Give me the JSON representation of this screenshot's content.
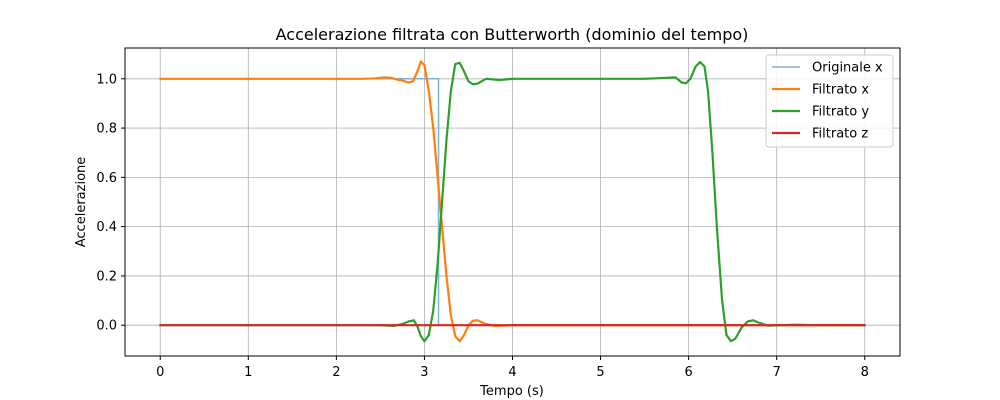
{
  "chart_data": {
    "type": "line",
    "title": "Accelerazione filtrata con Butterworth (dominio del tempo)",
    "xlabel": "Tempo (s)",
    "ylabel": "Accelerazione",
    "xlim": [
      -0.4,
      8.4
    ],
    "ylim": [
      -0.125,
      1.125
    ],
    "xticks": [
      0,
      1,
      2,
      3,
      4,
      5,
      6,
      7,
      8
    ],
    "yticks": [
      0.0,
      0.2,
      0.4,
      0.6,
      0.8,
      1.0
    ],
    "xtick_labels": [
      "0",
      "1",
      "2",
      "3",
      "4",
      "5",
      "6",
      "7",
      "8"
    ],
    "ytick_labels": [
      "0.0",
      "0.2",
      "0.4",
      "0.6",
      "0.8",
      "1.0"
    ],
    "grid": true,
    "legend_position": "top-right",
    "series": [
      {
        "name": "Originale x",
        "color": "#7fb2d6",
        "width": 1.5,
        "points": [
          [
            0,
            1.0
          ],
          [
            3.16,
            1.0
          ],
          [
            3.16,
            0.0
          ],
          [
            8,
            0.0
          ]
        ]
      },
      {
        "name": "Filtrato x",
        "color": "#ff7f0e",
        "width": 2.2,
        "points": [
          [
            0,
            1.0
          ],
          [
            2.3,
            1.0
          ],
          [
            2.45,
            1.002
          ],
          [
            2.55,
            1.006
          ],
          [
            2.62,
            1.004
          ],
          [
            2.7,
            0.996
          ],
          [
            2.75,
            0.993
          ],
          [
            2.82,
            0.985
          ],
          [
            2.87,
            0.99
          ],
          [
            2.92,
            1.03
          ],
          [
            2.96,
            1.07
          ],
          [
            3.0,
            1.055
          ],
          [
            3.05,
            0.95
          ],
          [
            3.1,
            0.8
          ],
          [
            3.15,
            0.6
          ],
          [
            3.2,
            0.4
          ],
          [
            3.25,
            0.2
          ],
          [
            3.3,
            0.04
          ],
          [
            3.35,
            -0.045
          ],
          [
            3.4,
            -0.065
          ],
          [
            3.45,
            -0.04
          ],
          [
            3.5,
            0.0
          ],
          [
            3.55,
            0.018
          ],
          [
            3.6,
            0.02
          ],
          [
            3.7,
            0.005
          ],
          [
            3.8,
            -0.003
          ],
          [
            4.0,
            0.0
          ],
          [
            8,
            0.0
          ]
        ]
      },
      {
        "name": "Filtrato y",
        "color": "#2ca02c",
        "width": 2.2,
        "points": [
          [
            0,
            0.0
          ],
          [
            2.5,
            0.0
          ],
          [
            2.65,
            -0.003
          ],
          [
            2.75,
            0.005
          ],
          [
            2.82,
            0.015
          ],
          [
            2.88,
            0.02
          ],
          [
            2.92,
            -0.005
          ],
          [
            2.96,
            -0.045
          ],
          [
            3.0,
            -0.065
          ],
          [
            3.05,
            -0.04
          ],
          [
            3.1,
            0.06
          ],
          [
            3.15,
            0.25
          ],
          [
            3.2,
            0.5
          ],
          [
            3.25,
            0.75
          ],
          [
            3.3,
            0.95
          ],
          [
            3.35,
            1.06
          ],
          [
            3.4,
            1.065
          ],
          [
            3.45,
            1.03
          ],
          [
            3.5,
            0.99
          ],
          [
            3.55,
            0.978
          ],
          [
            3.6,
            0.98
          ],
          [
            3.7,
            1.0
          ],
          [
            3.85,
            0.995
          ],
          [
            4.0,
            1.0
          ],
          [
            5.5,
            1.0
          ],
          [
            5.75,
            1.004
          ],
          [
            5.85,
            1.006
          ],
          [
            5.92,
            0.985
          ],
          [
            5.97,
            0.982
          ],
          [
            6.02,
            1.0
          ],
          [
            6.08,
            1.05
          ],
          [
            6.13,
            1.068
          ],
          [
            6.18,
            1.05
          ],
          [
            6.22,
            0.95
          ],
          [
            6.27,
            0.7
          ],
          [
            6.32,
            0.4
          ],
          [
            6.38,
            0.1
          ],
          [
            6.43,
            -0.04
          ],
          [
            6.48,
            -0.065
          ],
          [
            6.53,
            -0.055
          ],
          [
            6.6,
            -0.01
          ],
          [
            6.67,
            0.015
          ],
          [
            6.73,
            0.02
          ],
          [
            6.8,
            0.01
          ],
          [
            6.9,
            -0.002
          ],
          [
            7.2,
            0.002
          ],
          [
            7.5,
            0.0
          ],
          [
            8,
            0.0
          ]
        ]
      },
      {
        "name": "Filtrato z",
        "color": "#d62728",
        "width": 2.2,
        "points": [
          [
            0,
            0.0
          ],
          [
            8,
            0.0
          ]
        ]
      }
    ]
  }
}
